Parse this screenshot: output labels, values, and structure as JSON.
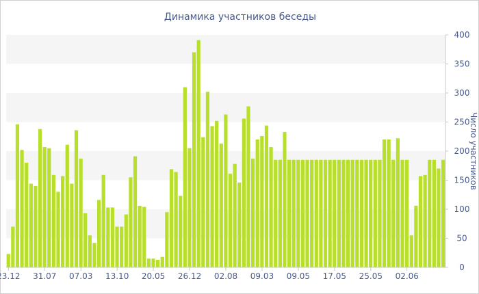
{
  "chart_data": {
    "type": "bar",
    "title": "Динамика участников беседы",
    "xlabel": "",
    "ylabel": "Число участников",
    "ylim": [
      0,
      400
    ],
    "yticks": [
      0,
      50,
      100,
      150,
      200,
      250,
      300,
      350,
      400
    ],
    "y_axis_side": "right",
    "grid": "horizontal bands",
    "bar_color": "#b8df2c",
    "band_color": "#f5f5f5",
    "text_color": "#4a5a8a",
    "xtick_labels": [
      {
        "index": 0,
        "label": "23.12"
      },
      {
        "index": 8,
        "label": "31.07"
      },
      {
        "index": 16,
        "label": "07.03"
      },
      {
        "index": 24,
        "label": "13.10"
      },
      {
        "index": 32,
        "label": "20.05"
      },
      {
        "index": 40,
        "label": "26.12"
      },
      {
        "index": 48,
        "label": "02.08"
      },
      {
        "index": 56,
        "label": "09.03"
      },
      {
        "index": 64,
        "label": "09.05"
      },
      {
        "index": 72,
        "label": "17.05"
      },
      {
        "index": 80,
        "label": "25.05"
      },
      {
        "index": 88,
        "label": "02.06"
      }
    ],
    "values": [
      23,
      70,
      246,
      202,
      180,
      144,
      140,
      238,
      207,
      205,
      159,
      130,
      157,
      211,
      144,
      236,
      187,
      93,
      55,
      42,
      116,
      159,
      103,
      103,
      70,
      70,
      91,
      155,
      191,
      106,
      104,
      15,
      15,
      13,
      18,
      95,
      169,
      164,
      123,
      310,
      205,
      370,
      391,
      224,
      302,
      243,
      252,
      213,
      263,
      161,
      178,
      146,
      256,
      277,
      187,
      220,
      226,
      244,
      207,
      185,
      185,
      233,
      185,
      185,
      185,
      185,
      185,
      185,
      185,
      185,
      185,
      185,
      185,
      185,
      185,
      185,
      185,
      185,
      185,
      185,
      185,
      185,
      185,
      220,
      220,
      185,
      222,
      185,
      185,
      55,
      106,
      157,
      159,
      185,
      185,
      170,
      185
    ]
  }
}
